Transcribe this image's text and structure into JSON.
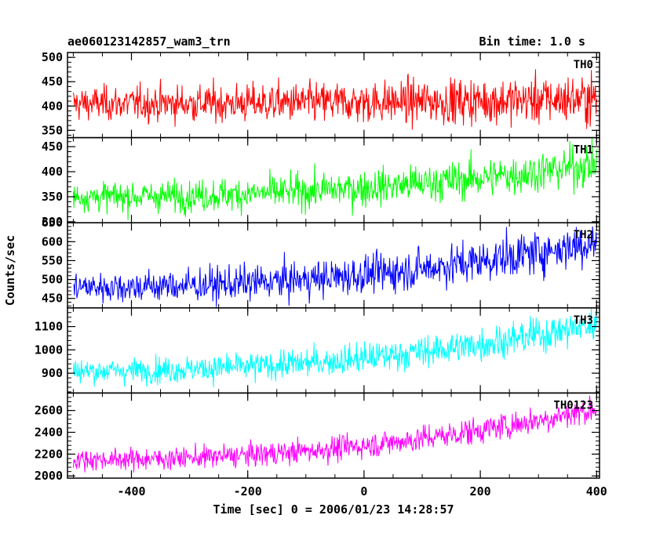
{
  "header": {
    "title_left": "ae060123142857_wam3_trn",
    "title_right": "Bin time: 1.0 s"
  },
  "chart_data": {
    "type": "line",
    "xlabel": "Time [sec] 0 = 2006/01/23 14:28:57",
    "ylabel": "Counts/sec",
    "xlim": [
      -510,
      405
    ],
    "xticks": [
      -400,
      -200,
      0,
      200,
      400
    ],
    "series": [
      {
        "name": "TH0",
        "color": "#ff0000",
        "ylim": [
          335,
          510
        ],
        "yticks": [
          350,
          400,
          450,
          500
        ],
        "baseline_start": 405,
        "baseline_end": 415,
        "noise": 30
      },
      {
        "name": "TH1",
        "color": "#00ff00",
        "ylim": [
          298,
          468
        ],
        "yticks": [
          300,
          350,
          400,
          450
        ],
        "baseline_start": 350,
        "baseline_end": 415,
        "noise": 25
      },
      {
        "name": "TH2",
        "color": "#0000ff",
        "ylim": [
          425,
          650
        ],
        "yticks": [
          450,
          500,
          550,
          600,
          650
        ],
        "baseline_start": 480,
        "baseline_end": 600,
        "noise": 35
      },
      {
        "name": "TH3",
        "color": "#00ffff",
        "ylim": [
          815,
          1180
        ],
        "yticks": [
          900,
          1000,
          1100
        ],
        "baseline_start": 910,
        "baseline_end": 1110,
        "noise": 45
      },
      {
        "name": "TH0123",
        "color": "#ff00ff",
        "ylim": [
          1980,
          2760
        ],
        "yticks": [
          2000,
          2200,
          2400,
          2600
        ],
        "baseline_start": 2150,
        "baseline_end": 2620,
        "noise": 80
      }
    ]
  }
}
